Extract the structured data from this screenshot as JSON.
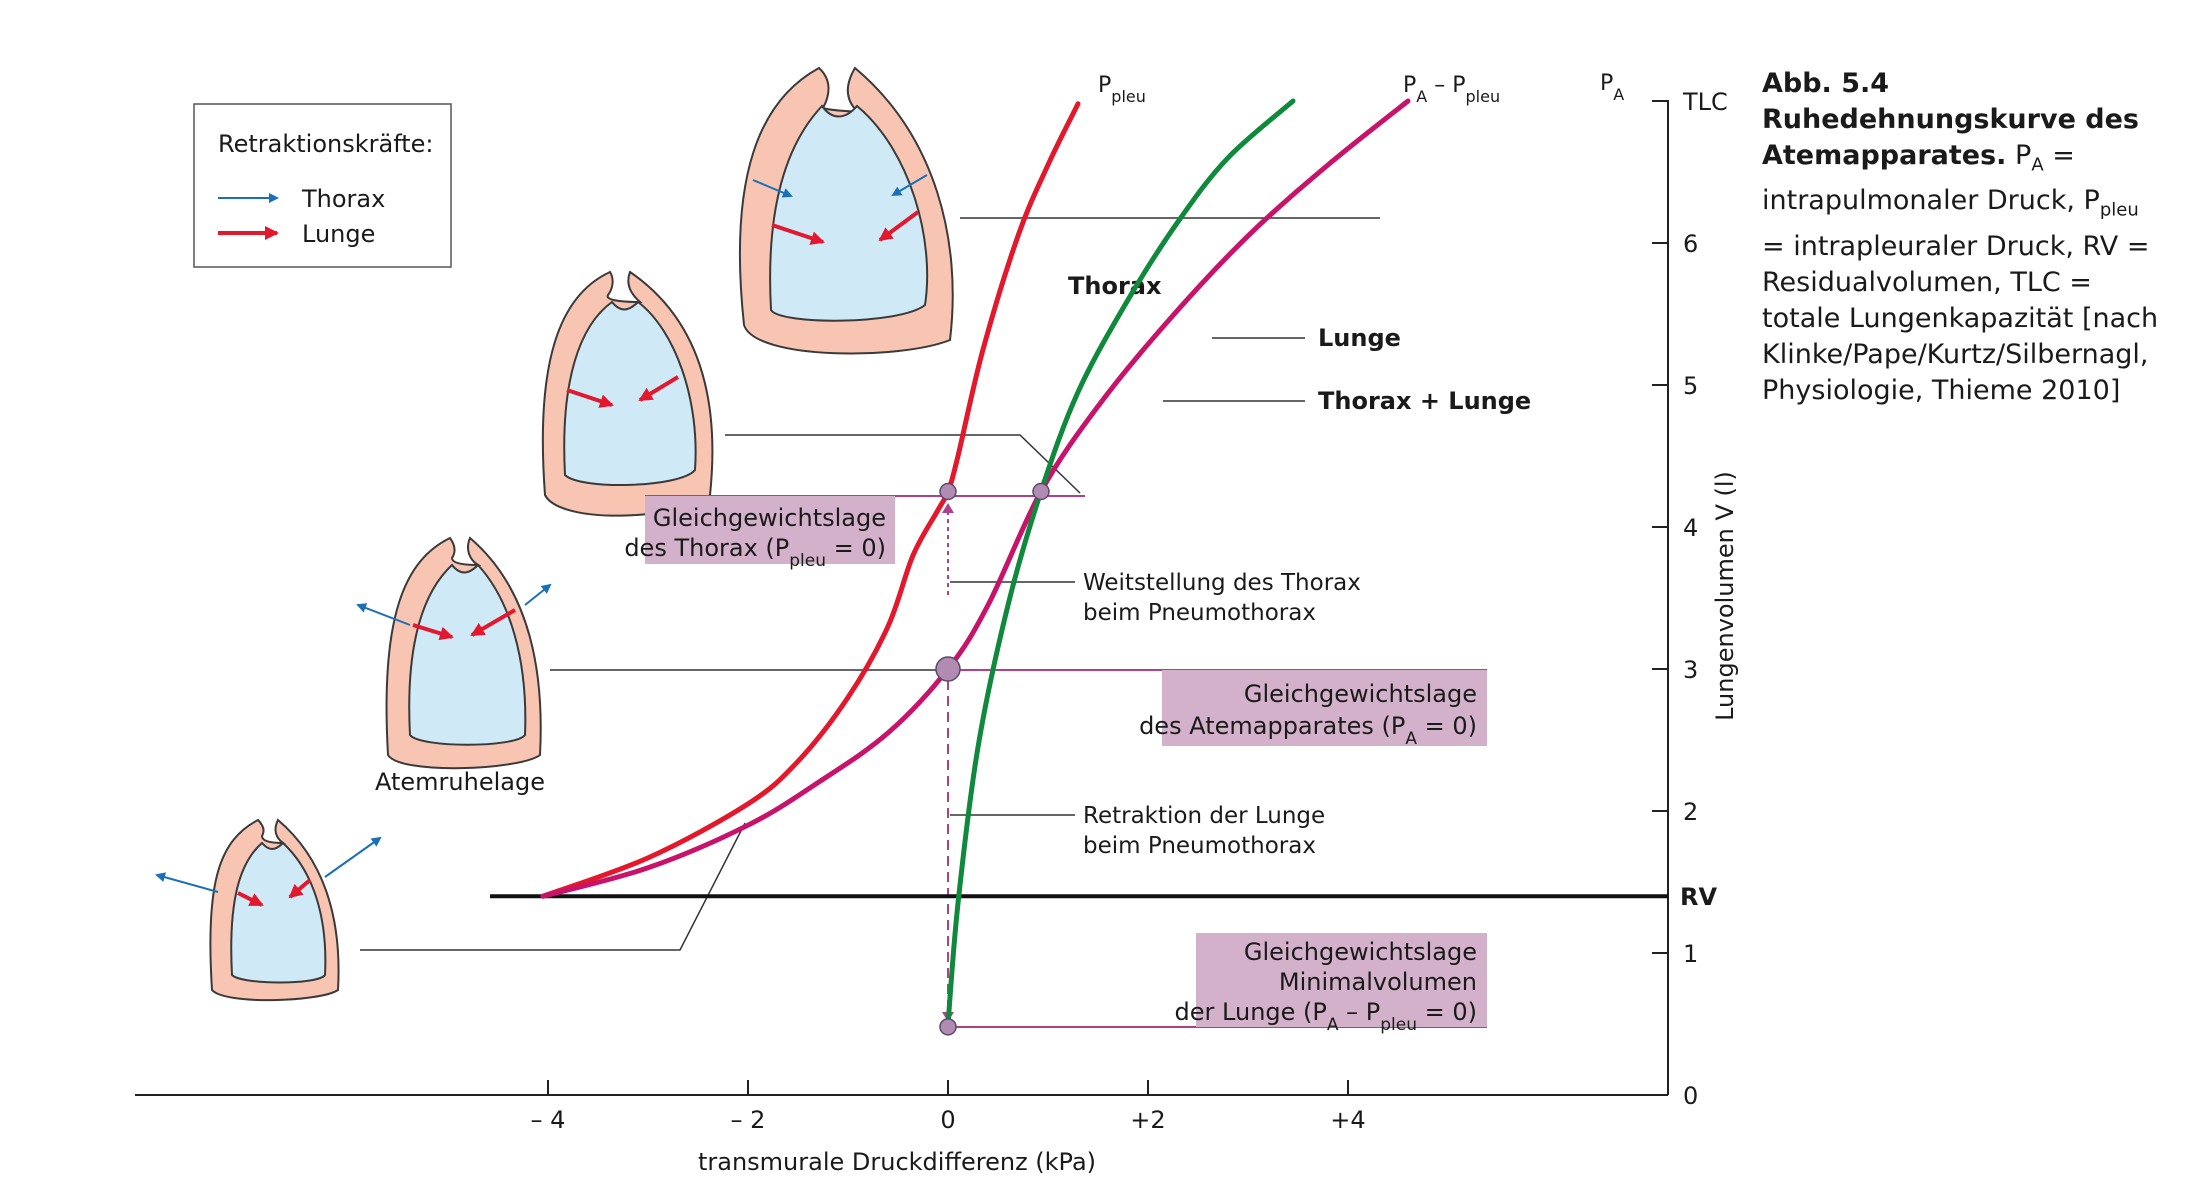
{
  "chart_data": {
    "type": "line",
    "xlabel": "transmurale Druckdifferenz (kPa)",
    "ylabel": "Lungenvolumen V (l)",
    "xlim": [
      -5.7,
      5.1
    ],
    "ylim": [
      0,
      7
    ],
    "x_ticks": [
      -4,
      -2,
      0,
      2,
      4
    ],
    "x_tick_labels": [
      "– 4",
      "– 2",
      "0",
      "+2",
      "+4"
    ],
    "y_ticks": [
      0,
      1,
      2,
      3,
      4,
      5,
      6,
      7
    ],
    "y_tick_labels": [
      "0",
      "1",
      "2",
      "3",
      "4",
      "5",
      "6",
      "TLC"
    ],
    "grid": false,
    "rv_level": 1.4,
    "rv_label": "RV",
    "series": [
      {
        "name": "P",
        "name_sub": "pleu",
        "color": "#e3182d",
        "x": [
          -4.05,
          -3.0,
          -2.0,
          -1.5,
          -1.0,
          -0.6,
          -0.35,
          -0.1,
          0.0,
          0.1,
          0.35,
          0.7,
          1.0,
          1.3
        ],
        "y": [
          1.4,
          1.67,
          2.05,
          2.35,
          2.8,
          3.3,
          3.8,
          4.12,
          4.25,
          4.5,
          5.25,
          6.05,
          6.55,
          6.98
        ]
      },
      {
        "name": "P",
        "name_sub": "A",
        "color": "#c8136b",
        "x": [
          -4.05,
          -3.0,
          -2.0,
          -1.3,
          -0.6,
          0.0,
          0.4,
          0.93,
          1.5,
          2.2,
          3.0,
          3.8,
          4.6
        ],
        "y": [
          1.4,
          1.6,
          1.9,
          2.2,
          2.55,
          3.0,
          3.45,
          4.25,
          4.85,
          5.45,
          6.05,
          6.55,
          7.0
        ]
      },
      {
        "name": "P",
        "name_sub": "A",
        "name_suffix": " – P",
        "name_suffix_sub": "pleu",
        "color": "#0f8a3c",
        "x": [
          0.0,
          0.1,
          0.3,
          0.6,
          0.93,
          1.3,
          1.8,
          2.3,
          2.8,
          3.45
        ],
        "y": [
          0.5,
          1.35,
          2.45,
          3.45,
          4.25,
          4.95,
          5.6,
          6.15,
          6.6,
          7.0
        ]
      }
    ],
    "curve_names": [
      {
        "text": "Thorax"
      },
      {
        "text": "Lunge"
      },
      {
        "text": "Thorax + Lunge"
      }
    ],
    "equilibrium_boxes": [
      {
        "lines": [
          "Gleichgewichtslage",
          "des Thorax (P",
          "pleu",
          " = 0)"
        ]
      },
      {
        "lines": [
          "Gleichgewichtslage",
          "des Atemapparates (P",
          "A",
          " = 0)"
        ]
      },
      {
        "lines": [
          "Gleichgewichtslage",
          "Minimalvolumen",
          "der Lunge (P",
          "A",
          " – P",
          "pleu",
          " = 0)"
        ]
      }
    ],
    "annotations": [
      {
        "lines": [
          "Weitstellung des Thorax",
          "beim Pneumothorax"
        ]
      },
      {
        "lines": [
          "Retraktion der Lunge",
          "beim Pneumothorax"
        ]
      }
    ],
    "points": [
      {
        "x": 0.0,
        "y": 4.25
      },
      {
        "x": 0.93,
        "y": 4.25
      },
      {
        "x": 0.0,
        "y": 3.0
      },
      {
        "x": 0.0,
        "y": 0.48
      }
    ],
    "state_label": "Atemruhelage",
    "legend": {
      "title": "Retraktionskräfte:",
      "items": [
        {
          "label": "Thorax",
          "color": "#1a70b8"
        },
        {
          "label": "Lunge",
          "color": "#e3182d"
        }
      ]
    },
    "colors": {
      "box_fill": "#d3b1ca",
      "box_line": "#b1408a",
      "pleura": "#f7c5b2",
      "lung": "#cfe9f7",
      "thorax_arrow": "#1a70b8",
      "lung_arrow": "#e3182d"
    }
  },
  "caption": {
    "number": "Abb. 5.4",
    "title": "Ruhedehnungskurve des Atemapparates.",
    "text_1": "P",
    "text_1_sub": "A",
    "text_2": " = intrapulmonaler Druck, P",
    "text_2_sub": "pleu",
    "text_3": " = intrapleuraler Druck, RV = Residualvolumen, TLC = totale Lungenkapazität [nach Klinke/Pape/Kurtz/Silbernagl, Physiologie, Thieme 2010]"
  }
}
